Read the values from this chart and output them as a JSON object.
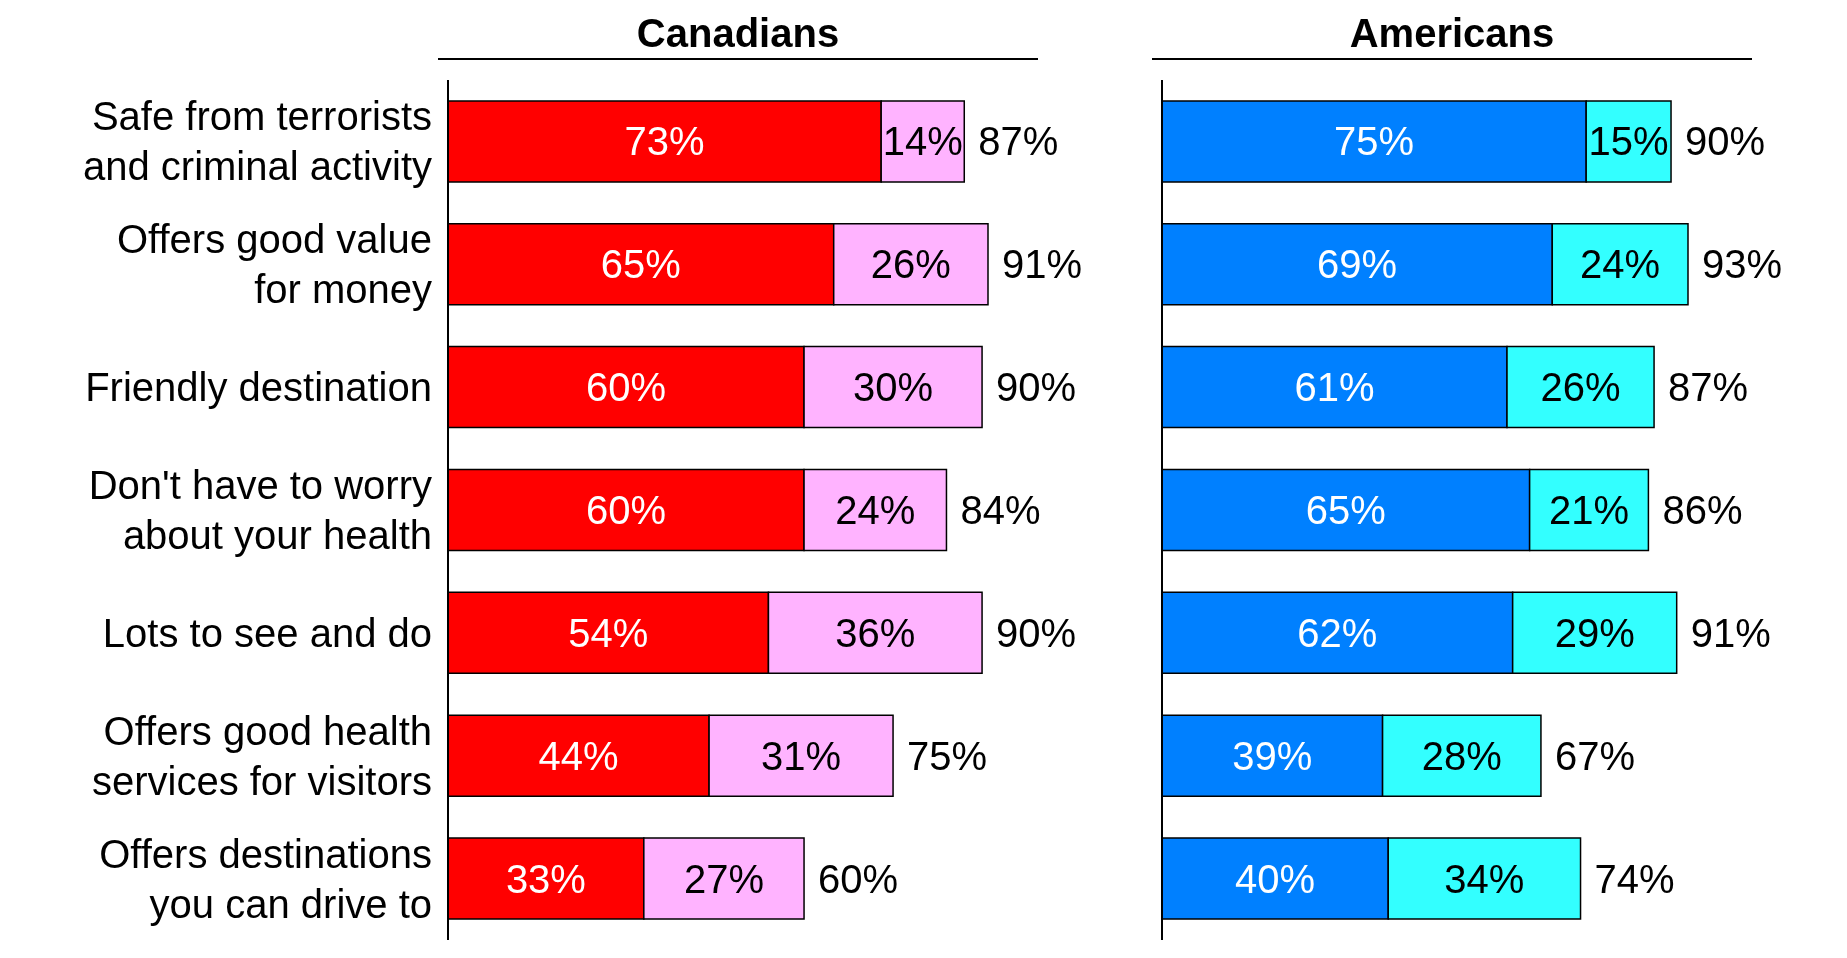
{
  "chart_data": [
    {
      "type": "bar",
      "orientation": "horizontal",
      "stacked": true,
      "tick_labels": "y",
      "title": "Canadians",
      "categories": [
        "Safe from terrorists and criminal activity",
        "Offers good value for money",
        "Friendly destination",
        "Don't have to worry about your health",
        "Lots to see and do",
        "Offers good health services for visitors",
        "Offers destinations you can drive to"
      ],
      "series": [
        {
          "color": "#ff0000",
          "values": [
            73,
            65,
            60,
            60,
            54,
            44,
            33
          ],
          "value_labels": [
            "73%",
            "65%",
            "60%",
            "60%",
            "54%",
            "44%",
            "33%"
          ]
        },
        {
          "color": "#ffb3ff",
          "values": [
            14,
            26,
            30,
            24,
            36,
            31,
            27
          ],
          "value_labels": [
            "14%",
            "26%",
            "30%",
            "24%",
            "36%",
            "31%",
            "27%"
          ]
        }
      ],
      "totals": [
        "87%",
        "91%",
        "90%",
        "84%",
        "90%",
        "75%",
        "60%"
      ]
    },
    {
      "type": "bar",
      "orientation": "horizontal",
      "stacked": true,
      "tick_labels": false,
      "title": "Americans",
      "categories": [
        null,
        null,
        null,
        null,
        null,
        null,
        null
      ],
      "series": [
        {
          "color": "#0080ff",
          "values": [
            75,
            69,
            61,
            65,
            62,
            39,
            40
          ],
          "value_labels": [
            "75%",
            "69%",
            "61%",
            "65%",
            "62%",
            "39%",
            "40%"
          ]
        },
        {
          "color": "#33ffff",
          "values": [
            15,
            24,
            26,
            21,
            29,
            28,
            34
          ],
          "value_labels": [
            "15%",
            "24%",
            "26%",
            "21%",
            "29%",
            "28%",
            "34%"
          ]
        }
      ],
      "totals": [
        "90%",
        "93%",
        "87%",
        "86%",
        "91%",
        "67%",
        "74%"
      ]
    }
  ]
}
